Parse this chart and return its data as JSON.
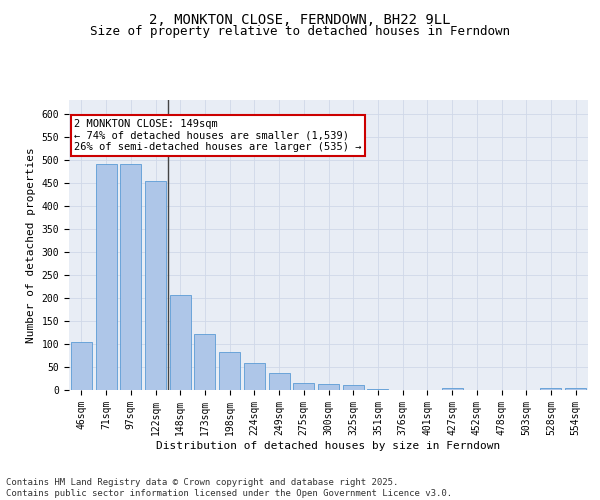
{
  "title_line1": "2, MONKTON CLOSE, FERNDOWN, BH22 9LL",
  "title_line2": "Size of property relative to detached houses in Ferndown",
  "xlabel": "Distribution of detached houses by size in Ferndown",
  "ylabel": "Number of detached properties",
  "categories": [
    "46sqm",
    "71sqm",
    "97sqm",
    "122sqm",
    "148sqm",
    "173sqm",
    "198sqm",
    "224sqm",
    "249sqm",
    "275sqm",
    "300sqm",
    "325sqm",
    "351sqm",
    "376sqm",
    "401sqm",
    "427sqm",
    "452sqm",
    "478sqm",
    "503sqm",
    "528sqm",
    "554sqm"
  ],
  "values": [
    105,
    490,
    490,
    455,
    207,
    121,
    82,
    58,
    37,
    15,
    12,
    11,
    3,
    0,
    0,
    5,
    0,
    0,
    0,
    5,
    5
  ],
  "bar_color": "#aec6e8",
  "bar_edge_color": "#5b9bd5",
  "annotation_text": "2 MONKTON CLOSE: 149sqm\n← 74% of detached houses are smaller (1,539)\n26% of semi-detached houses are larger (535) →",
  "annotation_box_color": "#ffffff",
  "annotation_box_edge_color": "#cc0000",
  "ylim": [
    0,
    630
  ],
  "yticks": [
    0,
    50,
    100,
    150,
    200,
    250,
    300,
    350,
    400,
    450,
    500,
    550,
    600
  ],
  "grid_color": "#d0d8e8",
  "background_color": "#e8edf5",
  "footer_text": "Contains HM Land Registry data © Crown copyright and database right 2025.\nContains public sector information licensed under the Open Government Licence v3.0.",
  "title_fontsize": 10,
  "subtitle_fontsize": 9,
  "axis_label_fontsize": 8,
  "tick_fontsize": 7,
  "annotation_fontsize": 7.5,
  "footer_fontsize": 6.5
}
